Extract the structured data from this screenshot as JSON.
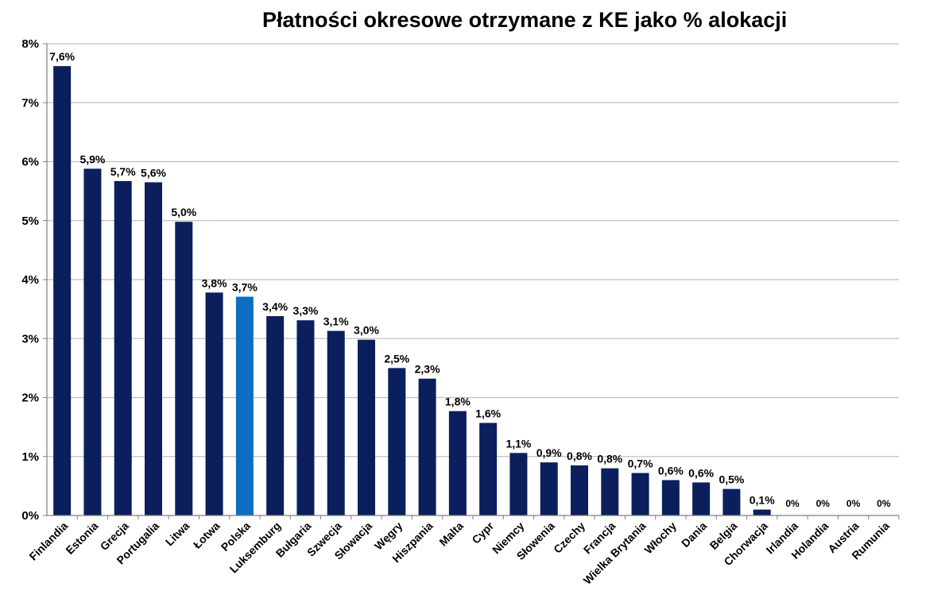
{
  "chart_data": {
    "type": "bar",
    "title": "Płatności okresowe otrzymane z KE jako % alokacji",
    "xlabel": "",
    "ylabel": "",
    "ylim": [
      0,
      8
    ],
    "y_ticks": [
      "0%",
      "1%",
      "2%",
      "3%",
      "4%",
      "5%",
      "6%",
      "7%",
      "8%"
    ],
    "grid": true,
    "legend": "none",
    "categories": [
      "Finlandia",
      "Estonia",
      "Grecja",
      "Portugalia",
      "Litwa",
      "Łotwa",
      "Polska",
      "Luksemburg",
      "Bułgaria",
      "Szwecja",
      "Słowacja",
      "Węgry",
      "Hiszpania",
      "Malta",
      "Cypr",
      "Niemcy",
      "Słowenia",
      "Czechy",
      "Francja",
      "Wielka Brytania",
      "Włochy",
      "Dania",
      "Belgia",
      "Chorwacja",
      "Irlandia",
      "Holandia",
      "Austria",
      "Rumunia"
    ],
    "values": [
      7.62,
      5.88,
      5.67,
      5.65,
      4.98,
      3.78,
      3.71,
      3.38,
      3.31,
      3.13,
      2.98,
      2.5,
      2.32,
      1.77,
      1.57,
      1.06,
      0.9,
      0.85,
      0.8,
      0.72,
      0.6,
      0.56,
      0.45,
      0.1,
      0,
      0,
      0,
      0
    ],
    "data_labels": [
      "7,6%",
      "5,9%",
      "5,7%",
      "5,6%",
      "5,0%",
      "3,8%",
      "3,7%",
      "3,4%",
      "3,3%",
      "3,1%",
      "3,0%",
      "2,5%",
      "2,3%",
      "1,8%",
      "1,6%",
      "1,1%",
      "0,9%",
      "0,8%",
      "0,8%",
      "0,7%",
      "0,6%",
      "0,6%",
      "0,5%",
      "0,1%",
      "0%",
      "0%",
      "0%",
      "0%"
    ],
    "highlight_category": "Polska",
    "colors": {
      "bar": "#0a1f5c",
      "highlight": "#0b6ec2",
      "grid": "#bfbfbf",
      "axis": "#808080"
    }
  }
}
